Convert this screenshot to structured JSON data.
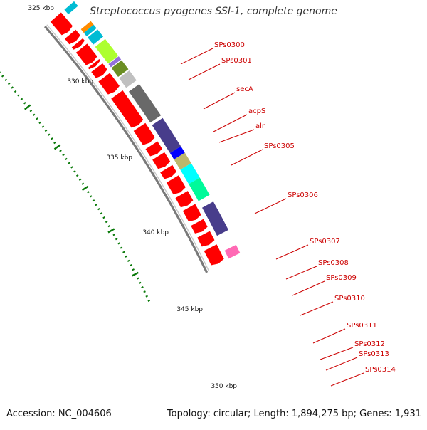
{
  "header": {
    "title": "Streptococcus pyogenes SSI-1, complete genome"
  },
  "footer": {
    "accession": "Accession: NC_004606",
    "summary": "Topology: circular; Length: 1,894,275 bp; Genes: 1,931"
  },
  "scale": {
    "labels": [
      "325 kbp",
      "330 kbp",
      "335 kbp",
      "340 kbp",
      "345 kbp",
      "350 kbp"
    ]
  },
  "genes": [
    {
      "name": "SPs0300",
      "color": "#ff0000"
    },
    {
      "name": "SPs0301",
      "color": "#ff0000"
    },
    {
      "name": "secA",
      "color": "#ff0000"
    },
    {
      "name": "acpS",
      "color": "#ff0000"
    },
    {
      "name": "alr",
      "color": "#ff0000"
    },
    {
      "name": "SPs0305",
      "color": "#ff0000"
    },
    {
      "name": "SPs0306",
      "color": "#ff0000"
    },
    {
      "name": "SPs0307",
      "color": "#ff0000"
    },
    {
      "name": "SPs0308",
      "color": "#ff0000"
    },
    {
      "name": "SPs0309",
      "color": "#ff0000"
    },
    {
      "name": "SPs0310",
      "color": "#ff0000"
    },
    {
      "name": "SPs0311",
      "color": "#ff0000"
    },
    {
      "name": "SPs0312",
      "color": "#ff0000"
    },
    {
      "name": "SPs0313",
      "color": "#ff0000"
    },
    {
      "name": "SPs0314",
      "color": "#ff0000"
    }
  ],
  "colors": {
    "gene": "#ff0000",
    "label": "#cc0000",
    "backbone": "#888888",
    "tick": "#0a7a0a",
    "cog": [
      "#00bcd4",
      "#ff8c00",
      "#adff2f",
      "#9370db",
      "#6b8e23",
      "#c0c0c0",
      "#696969",
      "#483d8b",
      "#0000ff",
      "#bdb76b",
      "#00ffff",
      "#00fa9a",
      "#ff69b4"
    ]
  }
}
